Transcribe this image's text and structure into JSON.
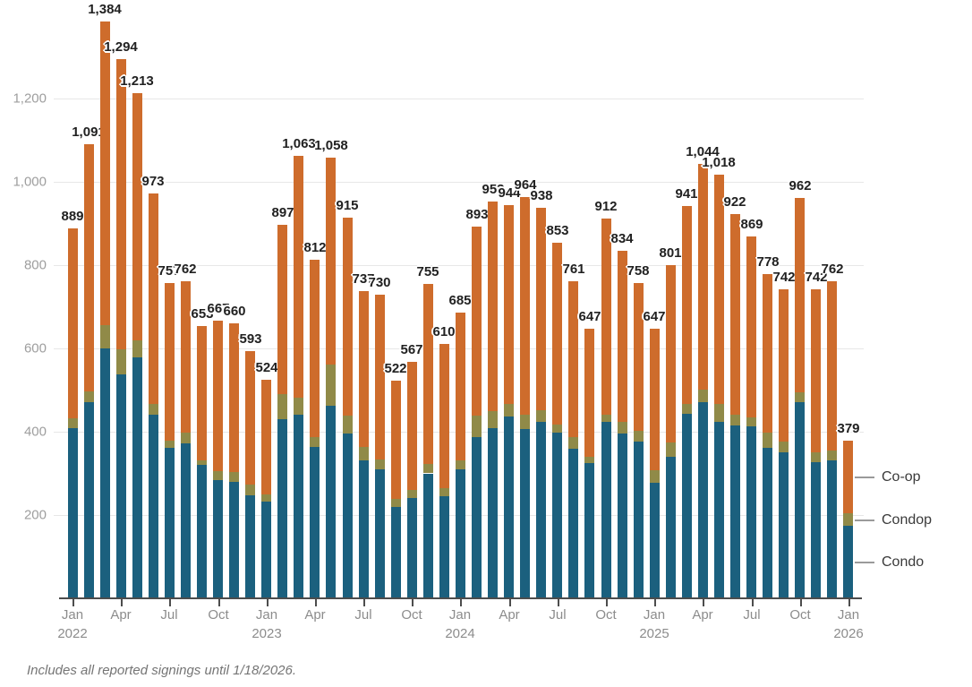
{
  "chart_data": {
    "type": "bar",
    "stacked": true,
    "title": "",
    "xlabel": "",
    "ylabel": "",
    "grid": true,
    "ylim": [
      0,
      1400
    ],
    "yticks": [
      {
        "value": 200,
        "label": "200"
      },
      {
        "value": 400,
        "label": "400"
      },
      {
        "value": 600,
        "label": "600"
      },
      {
        "value": 800,
        "label": "800"
      },
      {
        "value": 1000,
        "label": "1,000"
      },
      {
        "value": 1200,
        "label": "1,200"
      }
    ],
    "x": [
      "Jan 2022",
      "Feb 2022",
      "Mar 2022",
      "Apr 2022",
      "May 2022",
      "Jun 2022",
      "Jul 2022",
      "Aug 2022",
      "Sep 2022",
      "Oct 2022",
      "Nov 2022",
      "Dec 2022",
      "Jan 2023",
      "Feb 2023",
      "Mar 2023",
      "Apr 2023",
      "May 2023",
      "Jun 2023",
      "Jul 2023",
      "Aug 2023",
      "Sep 2023",
      "Oct 2023",
      "Nov 2023",
      "Dec 2023",
      "Jan 2024",
      "Feb 2024",
      "Mar 2024",
      "Apr 2024",
      "May 2024",
      "Jun 2024",
      "Jul 2024",
      "Aug 2024",
      "Sep 2024",
      "Oct 2024",
      "Nov 2024",
      "Dec 2024",
      "Jan 2025",
      "Feb 2025",
      "Mar 2025",
      "Apr 2025",
      "May 2025",
      "Jun 2025",
      "Jul 2025",
      "Aug 2025",
      "Sep 2025",
      "Oct 2025",
      "Nov 2025",
      "Dec 2025",
      "Jan 2026"
    ],
    "xticks": [
      {
        "i": 0,
        "label": "Jan",
        "year": "2022"
      },
      {
        "i": 3,
        "label": "Apr"
      },
      {
        "i": 6,
        "label": "Jul"
      },
      {
        "i": 9,
        "label": "Oct"
      },
      {
        "i": 12,
        "label": "Jan",
        "year": "2023"
      },
      {
        "i": 15,
        "label": "Apr"
      },
      {
        "i": 18,
        "label": "Jul"
      },
      {
        "i": 21,
        "label": "Oct"
      },
      {
        "i": 24,
        "label": "Jan",
        "year": "2024"
      },
      {
        "i": 27,
        "label": "Apr"
      },
      {
        "i": 30,
        "label": "Jul"
      },
      {
        "i": 33,
        "label": "Oct"
      },
      {
        "i": 36,
        "label": "Jan",
        "year": "2025"
      },
      {
        "i": 39,
        "label": "Apr"
      },
      {
        "i": 42,
        "label": "Jul"
      },
      {
        "i": 45,
        "label": "Oct"
      },
      {
        "i": 48,
        "label": "Jan",
        "year": "2026"
      }
    ],
    "series": [
      {
        "name": "Condo",
        "color": "#1b607e",
        "values": [
          408,
          472,
          600,
          538,
          579,
          441,
          362,
          372,
          321,
          284,
          280,
          248,
          232,
          430,
          441,
          364,
          462,
          396,
          331,
          310,
          220,
          240,
          300,
          245,
          310,
          387,
          409,
          437,
          407,
          424,
          398,
          359,
          325,
          424,
          396,
          377,
          278,
          340,
          443,
          471,
          424,
          415,
          413,
          362,
          351,
          471,
          327,
          331,
          175
        ]
      },
      {
        "name": "Condop",
        "color": "#908a48",
        "values": [
          25,
          25,
          55,
          60,
          40,
          25,
          17,
          26,
          10,
          22,
          24,
          25,
          18,
          60,
          41,
          24,
          100,
          43,
          32,
          24,
          18,
          20,
          22,
          20,
          21,
          51,
          41,
          30,
          34,
          28,
          19,
          28,
          15,
          17,
          27,
          25,
          30,
          34,
          23,
          30,
          43,
          26,
          22,
          36,
          26,
          24,
          24,
          24,
          30
        ]
      },
      {
        "name": "Co-op",
        "color": "#ce6c2c",
        "values": [
          456,
          594,
          729,
          696,
          594,
          507,
          378,
          364,
          322,
          361,
          356,
          320,
          274,
          407,
          581,
          424,
          496,
          476,
          374,
          396,
          284,
          307,
          433,
          345,
          354,
          455,
          503,
          477,
          523,
          486,
          436,
          374,
          307,
          471,
          411,
          356,
          339,
          427,
          475,
          543,
          551,
          481,
          434,
          380,
          365,
          467,
          391,
          407,
          174
        ]
      }
    ],
    "totals": [
      889,
      1091,
      1384,
      1294,
      1213,
      973,
      757,
      762,
      653,
      667,
      660,
      593,
      524,
      897,
      1063,
      812,
      1058,
      915,
      737,
      730,
      522,
      567,
      755,
      610,
      685,
      893,
      953,
      944,
      964,
      938,
      853,
      761,
      647,
      912,
      834,
      758,
      647,
      801,
      941,
      1044,
      1018,
      922,
      869,
      778,
      742,
      962,
      742,
      762,
      379
    ],
    "total_labels": [
      "889",
      "1,091",
      "1,384",
      "1,294",
      "1,213",
      "973",
      "757",
      "762",
      "653",
      "667",
      "660",
      "593",
      "524",
      "897",
      "1,063",
      "812",
      "1,058",
      "915",
      "737",
      "730",
      "522",
      "567",
      "755",
      "610",
      "685",
      "893",
      "953",
      "944",
      "964",
      "938",
      "853",
      "761",
      "647",
      "912",
      "834",
      "758",
      "647",
      "801",
      "941",
      "1,044",
      "1,018",
      "922",
      "869",
      "778",
      "742",
      "962",
      "742",
      "762",
      "379"
    ],
    "legend": {
      "position": "right-of-last-bar",
      "entries": [
        "Co-op",
        "Condop",
        "Condo"
      ]
    }
  },
  "footer": {
    "note": "Includes all reported signings until 1/18/2026."
  },
  "colors": {
    "condo": "#1b607e",
    "condop": "#908a48",
    "coop": "#ce6c2c",
    "gridline": "#e7e7e7",
    "axis_line": "#4d4d4d",
    "y_label": "#9e9e9e",
    "x_label": "#8c8c8c",
    "total_label": "#212121",
    "footer": "#757575"
  }
}
